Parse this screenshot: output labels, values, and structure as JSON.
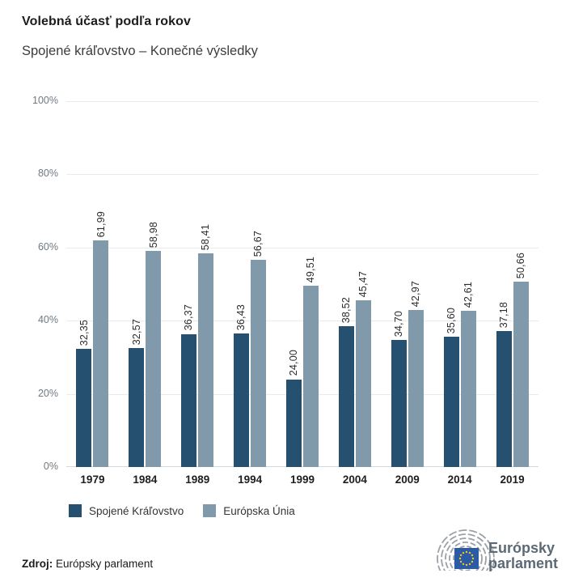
{
  "header": {
    "title": "Volebná účasť podľa rokov",
    "subtitle": "Spojené kráľovstvo – Konečné výsledky"
  },
  "chart_data": {
    "type": "bar",
    "title": "Volebná účasť podľa rokov",
    "subtitle": "Spojené kráľovstvo – Konečné výsledky",
    "categories": [
      "1979",
      "1984",
      "1989",
      "1994",
      "1999",
      "2004",
      "2009",
      "2014",
      "2019"
    ],
    "series": [
      {
        "name": "Spojené Kráľovstvo",
        "color": "#25506f",
        "values": [
          32.35,
          32.57,
          36.37,
          36.43,
          24.0,
          38.52,
          34.7,
          35.6,
          37.18
        ],
        "labels": [
          "32,35",
          "32,57",
          "36,37",
          "36,43",
          "24,00",
          "38,52",
          "34,70",
          "35,60",
          "37,18"
        ]
      },
      {
        "name": "Európska Únia",
        "color": "#8099ab",
        "values": [
          61.99,
          58.98,
          58.41,
          56.67,
          49.51,
          45.47,
          42.97,
          42.61,
          50.66
        ],
        "labels": [
          "61,99",
          "58,98",
          "58,41",
          "56,67",
          "49,51",
          "45,47",
          "42,97",
          "42,61",
          "50,66"
        ]
      }
    ],
    "xlabel": "",
    "ylabel": "",
    "ylim": [
      0,
      100
    ],
    "yticks": [
      {
        "value": 0,
        "label": "0%"
      },
      {
        "value": 20,
        "label": "20%"
      },
      {
        "value": 40,
        "label": "40%"
      },
      {
        "value": 60,
        "label": "60%"
      },
      {
        "value": 80,
        "label": "80%"
      },
      {
        "value": 100,
        "label": "100%"
      }
    ],
    "grid": true,
    "value_labels_rotated": true,
    "legend_position": "bottom"
  },
  "footer": {
    "source_label": "Zdroj:",
    "source_value": "Európsky parlament",
    "logo_line1": "Európsky",
    "logo_line2": "parlament"
  },
  "colors": {
    "series_uk": "#25506f",
    "series_eu": "#8099ab",
    "gridline": "#e8eaeb",
    "axis_line": "#d5d9dc",
    "tick_text": "#6f7982",
    "eu_flag_blue": "#2b5aa7",
    "eu_star_yellow": "#f6c910",
    "logo_text": "#5b6a76"
  }
}
